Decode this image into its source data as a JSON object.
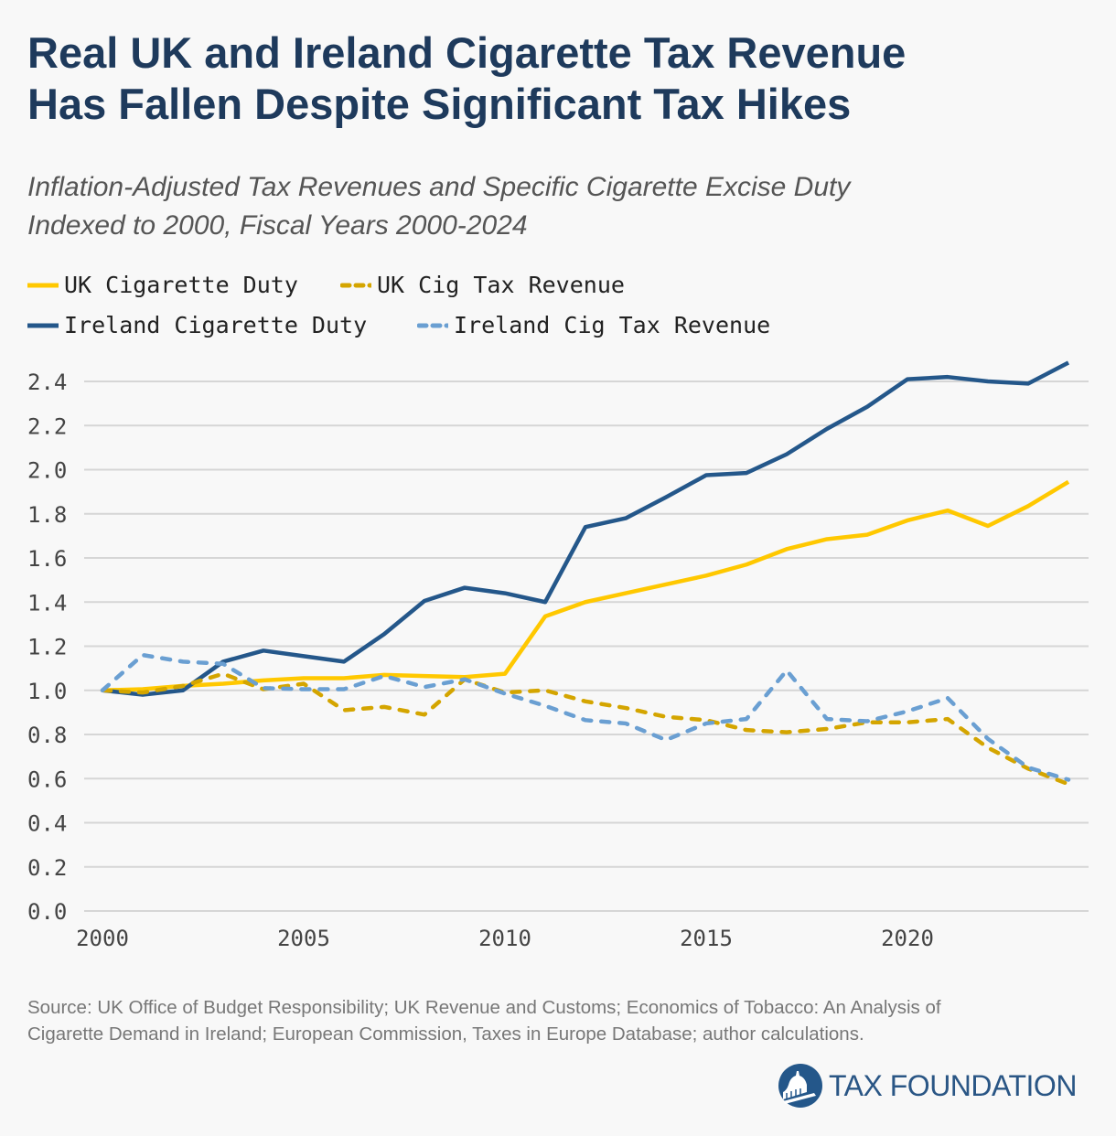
{
  "header": {
    "title_line1": "Real UK and Ireland Cigarette Tax Revenue",
    "title_line2": "Has Fallen Despite Significant Tax Hikes",
    "subtitle_line1": "Inflation-Adjusted Tax Revenues and Specific Cigarette Excise Duty",
    "subtitle_line2": "Indexed to 2000, Fiscal Years 2000-2024"
  },
  "footer": {
    "source_line1": "Source: UK Office of Budget Responsibility; UK Revenue and Customs; Economics of Tobacco: An Analysis of",
    "source_line2": "Cigarette Demand in Ireland; European Commission, Taxes in Europe Database; author calculations.",
    "logo_text": "TAX FOUNDATION",
    "logo_icon": "capitol-dome-icon"
  },
  "chart_data": {
    "type": "line",
    "title": "Real UK and Ireland Cigarette Tax Revenue Has Fallen Despite Significant Tax Hikes",
    "subtitle": "Inflation-Adjusted Tax Revenues and Specific Cigarette Excise Duty Indexed to 2000, Fiscal Years 2000-2024",
    "x": [
      2000,
      2001,
      2002,
      2003,
      2004,
      2005,
      2006,
      2007,
      2008,
      2009,
      2010,
      2011,
      2012,
      2013,
      2014,
      2015,
      2016,
      2017,
      2018,
      2019,
      2020,
      2021,
      2022,
      2023,
      2024
    ],
    "xlim": [
      2000,
      2024
    ],
    "ylim": [
      0,
      2.4
    ],
    "xticks": [
      "2000",
      "2005",
      "2010",
      "2015",
      "2020"
    ],
    "yticks": [
      "0.0",
      "0.2",
      "0.4",
      "0.6",
      "0.8",
      "1.0",
      "1.2",
      "1.4",
      "1.6",
      "1.8",
      "2.0",
      "2.2",
      "2.4"
    ],
    "grid": "horizontal",
    "legend": "top-left",
    "series": [
      {
        "name": "UK Cigarette Duty",
        "color": "#ffc800",
        "dash": false,
        "values": [
          1.0,
          1.005,
          1.02,
          1.03,
          1.045,
          1.055,
          1.055,
          1.07,
          1.065,
          1.06,
          1.075,
          1.335,
          1.4,
          1.44,
          1.48,
          1.52,
          1.57,
          1.64,
          1.685,
          1.705,
          1.77,
          1.815,
          1.745,
          1.835,
          1.945
        ]
      },
      {
        "name": "UK Cig Tax Revenue",
        "color": "#d4a500",
        "dash": true,
        "values": [
          1.0,
          0.99,
          1.02,
          1.075,
          1.005,
          1.03,
          0.91,
          0.925,
          0.89,
          1.05,
          0.99,
          1.0,
          0.95,
          0.92,
          0.88,
          0.865,
          0.82,
          0.81,
          0.825,
          0.855,
          0.855,
          0.87,
          0.74,
          0.645,
          0.575
        ]
      },
      {
        "name": "Ireland Cigarette Duty",
        "color": "#24578a",
        "dash": false,
        "values": [
          1.0,
          0.98,
          1.0,
          1.13,
          1.18,
          1.155,
          1.13,
          1.255,
          1.405,
          1.465,
          1.44,
          1.4,
          1.74,
          1.78,
          1.875,
          1.975,
          1.985,
          2.07,
          2.185,
          2.285,
          2.41,
          2.42,
          2.4,
          2.39,
          2.485
        ]
      },
      {
        "name": "Ireland Cig Tax Revenue",
        "color": "#6a9fd2",
        "dash": true,
        "values": [
          1.0,
          1.16,
          1.13,
          1.12,
          1.01,
          1.005,
          1.005,
          1.065,
          1.015,
          1.05,
          0.985,
          0.93,
          0.865,
          0.85,
          0.775,
          0.85,
          0.87,
          1.09,
          0.87,
          0.86,
          0.905,
          0.965,
          0.78,
          0.65,
          0.595
        ]
      }
    ]
  }
}
